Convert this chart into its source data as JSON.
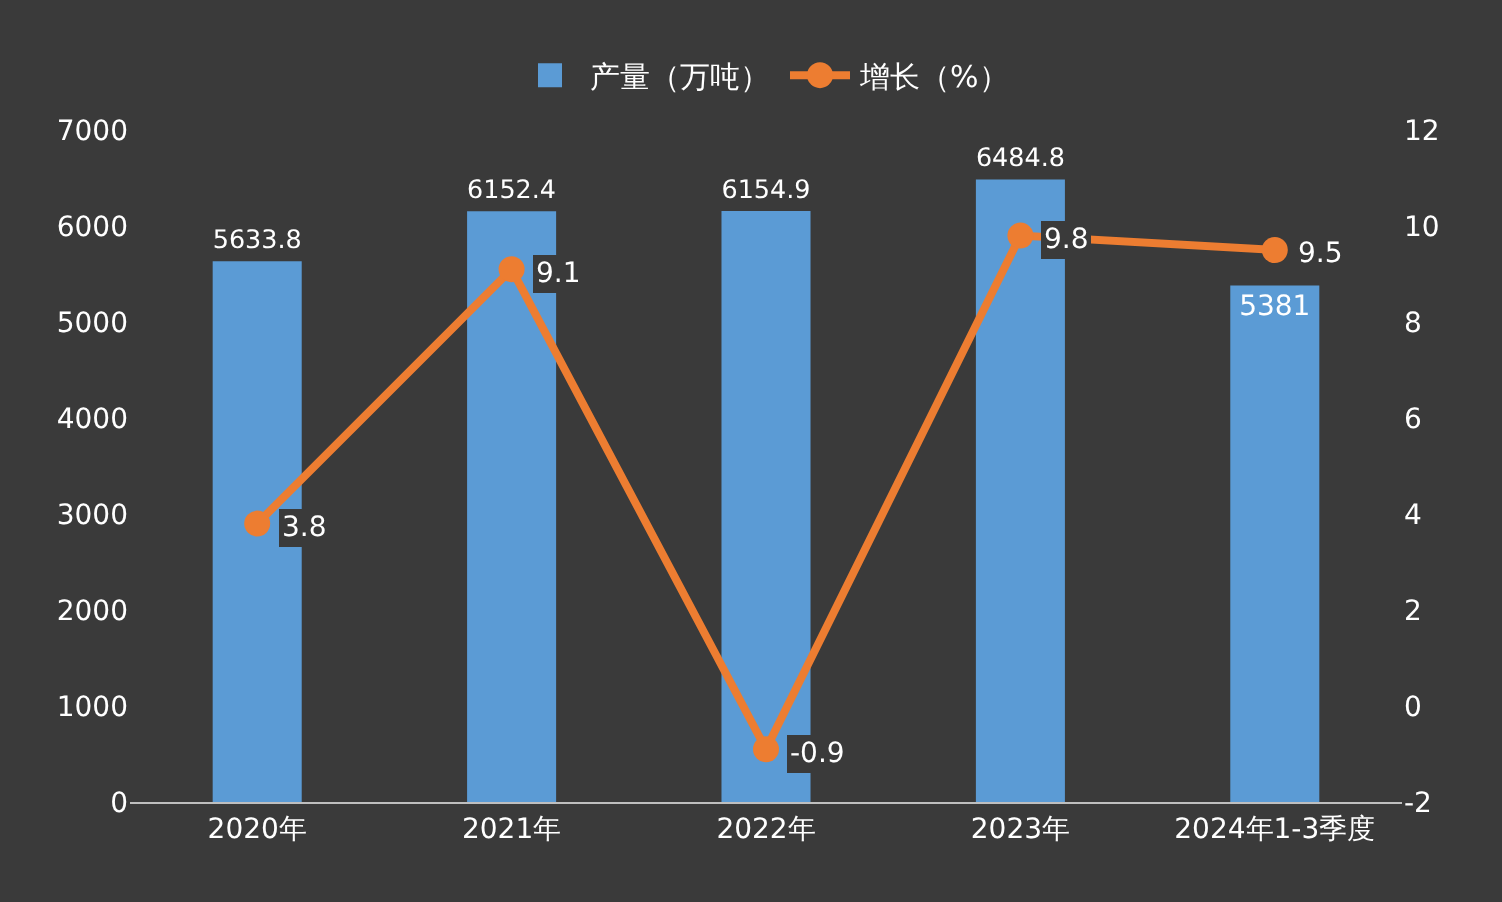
{
  "chart_data": {
    "type": "bar",
    "categories": [
      "2020年",
      "2021年",
      "2022年",
      "2023年",
      "2024年1-3季度"
    ],
    "series": [
      {
        "name": "产量（万吨）",
        "color": "#5b9bd5",
        "values": [
          5633.8,
          6152.4,
          6154.9,
          6484.8,
          5381
        ]
      },
      {
        "name": "增长（%）",
        "type": "line",
        "axis": "y2",
        "color": "#ed7d31",
        "values": [
          3.8,
          9.1,
          -0.9,
          9.8,
          9.5
        ]
      }
    ],
    "ylim": [
      0,
      7000
    ],
    "yticks": [
      0,
      1000,
      2000,
      3000,
      4000,
      5000,
      6000,
      7000
    ],
    "y2lim": [
      -2,
      12
    ],
    "y2ticks": [
      -2,
      0,
      2,
      4,
      6,
      8,
      10,
      12
    ],
    "data_labels": true,
    "legend": "top",
    "marker": "circle",
    "line_style": "solid",
    "grid": false
  }
}
